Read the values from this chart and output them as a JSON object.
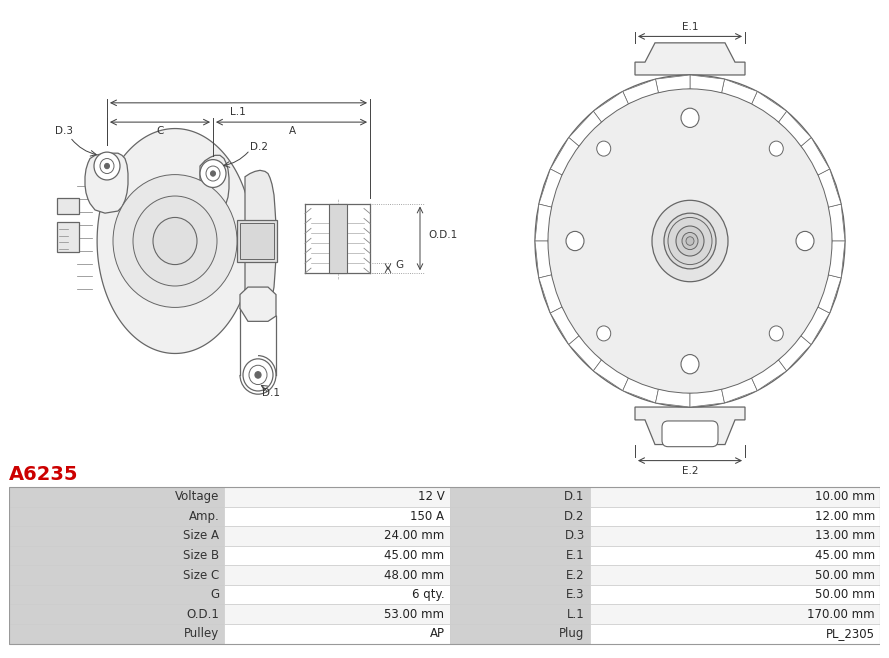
{
  "title": "A6235",
  "title_color": "#cc0000",
  "bg_color": "#ffffff",
  "table_rows": [
    [
      "Voltage",
      "12 V",
      "D.1",
      "10.00 mm"
    ],
    [
      "Amp.",
      "150 A",
      "D.2",
      "12.00 mm"
    ],
    [
      "Size A",
      "24.00 mm",
      "D.3",
      "13.00 mm"
    ],
    [
      "Size B",
      "45.00 mm",
      "E.1",
      "45.00 mm"
    ],
    [
      "Size C",
      "48.00 mm",
      "E.2",
      "50.00 mm"
    ],
    [
      "G",
      "6 qty.",
      "E.3",
      "50.00 mm"
    ],
    [
      "O.D.1",
      "53.00 mm",
      "L.1",
      "170.00 mm"
    ],
    [
      "Pulley",
      "AP",
      "Plug",
      "PL_2305"
    ]
  ],
  "lc": "#666666",
  "lw": 0.9,
  "table_border_color": "#cccccc",
  "label_gray": "#d0d0d0",
  "row_alt": "#f5f5f5"
}
